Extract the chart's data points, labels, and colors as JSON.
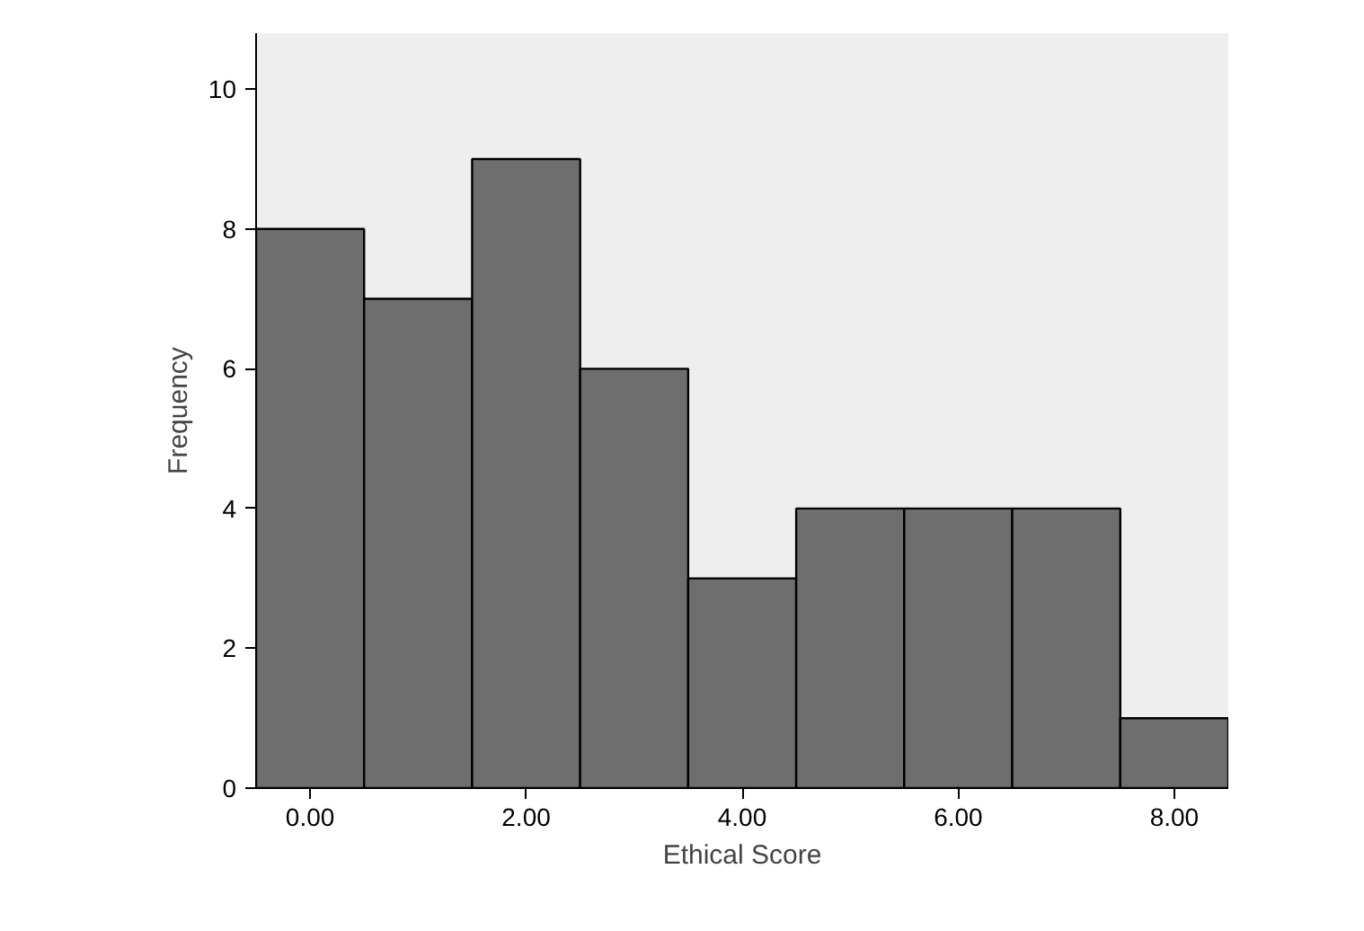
{
  "chart_data": {
    "type": "histogram",
    "xlabel": "Ethical Score",
    "ylabel": "Frequency",
    "bins": [
      -0.5,
      0.5,
      1.5,
      2.5,
      3.5,
      4.5,
      5.5,
      6.5,
      7.5,
      8.5
    ],
    "values": [
      8,
      7,
      9,
      6,
      3,
      4,
      4,
      4,
      1
    ],
    "color": "#6e6e6e",
    "xlim": [
      -0.5,
      8.5
    ],
    "ylim": [
      0,
      10.8
    ],
    "xticks": [
      {
        "value": 0,
        "label": "0.00"
      },
      {
        "value": 2,
        "label": "2.00"
      },
      {
        "value": 4,
        "label": "4.00"
      },
      {
        "value": 6,
        "label": "6.00"
      },
      {
        "value": 8,
        "label": "8.00"
      }
    ],
    "yticks": [
      0,
      2,
      4,
      6,
      8,
      10
    ],
    "grid": false
  }
}
